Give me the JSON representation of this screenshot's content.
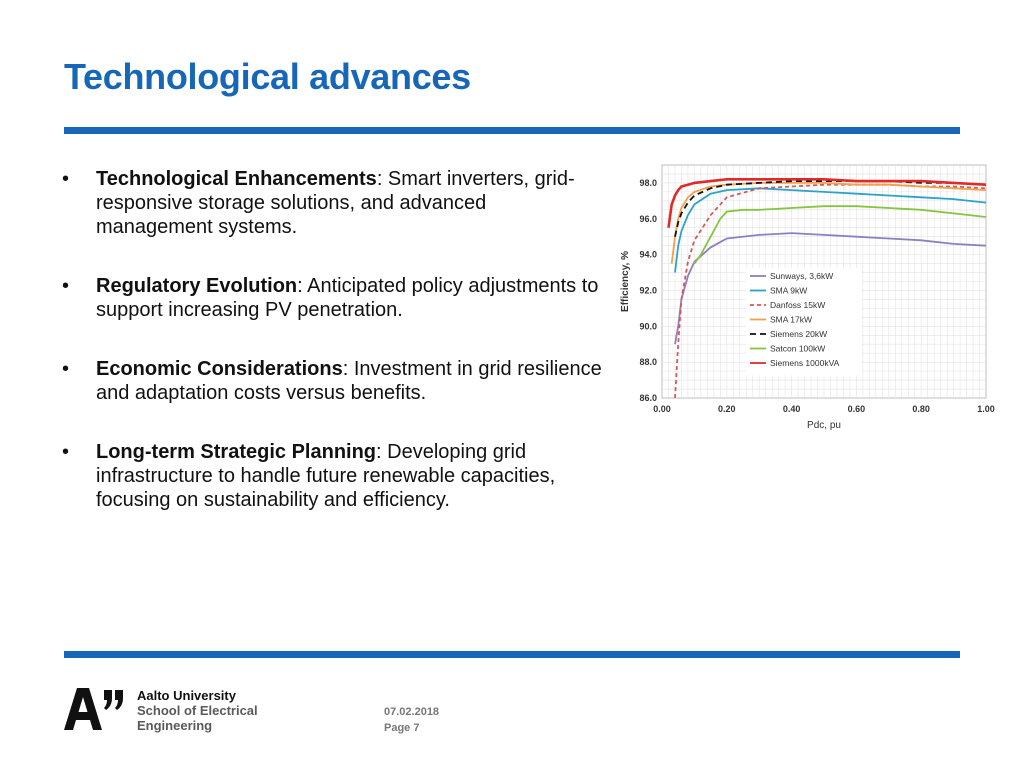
{
  "slide": {
    "title": "Technological advances"
  },
  "bullets": [
    {
      "head": "Technological Enhancements",
      "body": ": Smart inverters, grid-responsive storage solutions, and advanced management systems."
    },
    {
      "head": "Regulatory Evolution",
      "body": ": Anticipated policy adjustments to support increasing PV penetration."
    },
    {
      "head": "Economic Considerations",
      "body": ": Investment in grid resilience and adaptation costs versus benefits."
    },
    {
      "head": "Long-term Strategic Planning",
      "body": ": Developing grid infrastructure to handle future renewable capacities, focusing on sustainability and efficiency."
    }
  ],
  "bullet_symbol": "•",
  "footer": {
    "university": "Aalto University",
    "school_line1": "School of Electrical",
    "school_line2": "Engineering",
    "date": "07.02.2018",
    "page": "Page 7"
  },
  "colors": {
    "accent": "#1667b8"
  },
  "chart_data": {
    "type": "line",
    "xlabel": "Pdc, pu",
    "ylabel": "Efficiency, %",
    "xlim": [
      0.0,
      1.0
    ],
    "ylim": [
      86.0,
      99.0
    ],
    "x_ticks": [
      "0.00",
      "0.20",
      "0.40",
      "0.60",
      "0.80",
      "1.00"
    ],
    "y_ticks": [
      "86.0",
      "88.0",
      "90.0",
      "92.0",
      "94.0",
      "96.0",
      "98.0"
    ],
    "grid": true,
    "legend_position": "center-right",
    "series": [
      {
        "name": "Sunways, 3,6kW",
        "color": "#8e7fc0",
        "dash": "",
        "x": [
          0.04,
          0.05,
          0.06,
          0.08,
          0.1,
          0.15,
          0.2,
          0.3,
          0.4,
          0.5,
          0.6,
          0.7,
          0.8,
          0.9,
          1.0
        ],
        "y": [
          89.0,
          90.0,
          91.5,
          92.8,
          93.6,
          94.4,
          94.9,
          95.1,
          95.2,
          95.1,
          95.0,
          94.9,
          94.8,
          94.6,
          94.5
        ]
      },
      {
        "name": "SMA 9kW",
        "color": "#2ba3c9",
        "dash": "",
        "x": [
          0.04,
          0.05,
          0.06,
          0.08,
          0.1,
          0.15,
          0.2,
          0.3,
          0.4,
          0.5,
          0.6,
          0.7,
          0.8,
          0.9,
          1.0
        ],
        "y": [
          93.0,
          94.5,
          95.3,
          96.2,
          96.8,
          97.4,
          97.6,
          97.7,
          97.6,
          97.5,
          97.4,
          97.3,
          97.2,
          97.1,
          96.9
        ]
      },
      {
        "name": "Danfoss 15kW",
        "color": "#d9585b",
        "dash": "4,3",
        "x": [
          0.04,
          0.05,
          0.06,
          0.08,
          0.1,
          0.15,
          0.2,
          0.3,
          0.4,
          0.5,
          0.6,
          0.7,
          0.8,
          0.9,
          1.0
        ],
        "y": [
          86.0,
          89.0,
          91.5,
          93.6,
          94.8,
          96.2,
          97.2,
          97.7,
          97.8,
          97.9,
          97.9,
          97.9,
          97.8,
          97.8,
          97.7
        ]
      },
      {
        "name": "SMA 17kW",
        "color": "#f2a04a",
        "dash": "",
        "x": [
          0.03,
          0.04,
          0.05,
          0.06,
          0.08,
          0.1,
          0.15,
          0.2,
          0.3,
          0.4,
          0.5,
          0.6,
          0.7,
          0.8,
          0.9,
          1.0
        ],
        "y": [
          93.5,
          95.0,
          96.0,
          96.6,
          97.2,
          97.5,
          97.8,
          97.9,
          98.0,
          98.0,
          98.0,
          97.9,
          97.9,
          97.8,
          97.7,
          97.6
        ]
      },
      {
        "name": "Siemens 20kW",
        "color": "#111111",
        "dash": "6,4",
        "x": [
          0.04,
          0.05,
          0.06,
          0.08,
          0.1,
          0.15,
          0.2,
          0.3,
          0.4,
          0.5,
          0.6,
          0.7,
          0.8,
          0.9,
          1.0
        ],
        "y": [
          95.0,
          95.8,
          96.3,
          96.9,
          97.3,
          97.7,
          97.9,
          98.0,
          98.1,
          98.1,
          98.1,
          98.1,
          98.0,
          98.0,
          97.9
        ]
      },
      {
        "name": "Satcon 100kW",
        "color": "#86c440",
        "dash": "",
        "x": [
          0.1,
          0.12,
          0.15,
          0.18,
          0.2,
          0.25,
          0.3,
          0.4,
          0.5,
          0.6,
          0.7,
          0.8,
          0.9,
          1.0
        ],
        "y": [
          93.5,
          94.0,
          95.0,
          96.0,
          96.4,
          96.5,
          96.5,
          96.6,
          96.7,
          96.7,
          96.6,
          96.5,
          96.3,
          96.1
        ]
      },
      {
        "name": "Siemens 1000kVA",
        "color": "#e02a2a",
        "dash": "",
        "x": [
          0.02,
          0.03,
          0.04,
          0.05,
          0.06,
          0.08,
          0.1,
          0.15,
          0.2,
          0.3,
          0.4,
          0.5,
          0.6,
          0.7,
          0.8,
          0.9,
          1.0
        ],
        "y": [
          95.5,
          96.8,
          97.3,
          97.6,
          97.8,
          97.9,
          98.0,
          98.1,
          98.2,
          98.2,
          98.2,
          98.2,
          98.1,
          98.1,
          98.1,
          98.0,
          97.9
        ]
      }
    ]
  }
}
